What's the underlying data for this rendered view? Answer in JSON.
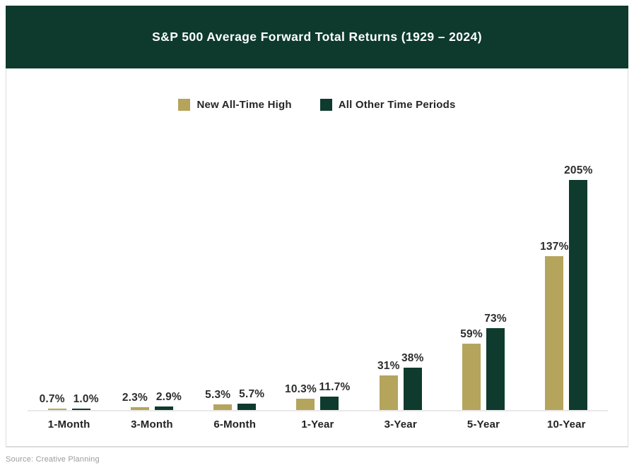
{
  "header": {
    "title": "S&P 500 Average Forward Total Returns (1929 – 2024)",
    "background_color": "#0d3a2d",
    "text_color": "#ffffff"
  },
  "legend": {
    "items": [
      {
        "label": "New All-Time High",
        "color": "#b5a45c"
      },
      {
        "label": "All Other Time Periods",
        "color": "#0e3b2e"
      }
    ]
  },
  "source": {
    "text": "Source: Creative Planning"
  },
  "colors": {
    "gold": "#b5a45c",
    "dark_green": "#0e3b2e",
    "axis_line": "#e9e9e9",
    "value_text": "#2d2d2d",
    "border": "#dcdcdc",
    "source_text": "#9b9b9b"
  },
  "chart_data": {
    "type": "bar",
    "title": "S&P 500 Average Forward Total Returns (1929 – 2024)",
    "xlabel": "",
    "ylabel": "",
    "ylim": [
      0,
      205
    ],
    "grid": false,
    "legend_position": "top-center",
    "value_labels": true,
    "categories": [
      "1-Month",
      "3-Month",
      "6-Month",
      "1-Year",
      "3-Year",
      "5-Year",
      "10-Year"
    ],
    "series": [
      {
        "name": "New All-Time High",
        "color": "#b5a45c",
        "values": [
          0.7,
          2.3,
          5.3,
          10.3,
          31,
          59,
          137
        ],
        "labels": [
          "0.7%",
          "2.3%",
          "5.3%",
          "10.3%",
          "31%",
          "59%",
          "137%"
        ]
      },
      {
        "name": "All Other Time Periods",
        "color": "#0e3b2e",
        "values": [
          1.0,
          2.9,
          5.7,
          11.7,
          38,
          73,
          205
        ],
        "labels": [
          "1.0%",
          "2.9%",
          "5.7%",
          "11.7%",
          "38%",
          "73%",
          "205%"
        ]
      }
    ]
  }
}
